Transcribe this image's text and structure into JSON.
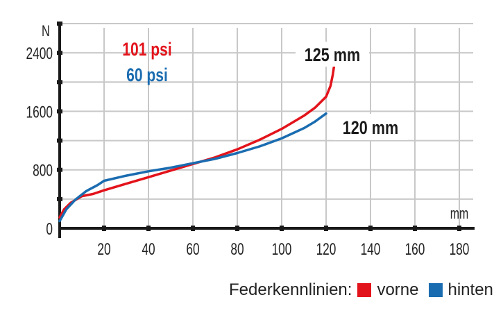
{
  "chart_data": {
    "type": "line",
    "ylabel": "N",
    "xlabel": "mm",
    "xlim": [
      0,
      180
    ],
    "ylim": [
      0,
      2800
    ],
    "x_ticks": [
      "20",
      "40",
      "60",
      "80",
      "100",
      "120",
      "140",
      "160",
      "180"
    ],
    "y_ticks": [
      "0",
      "800",
      "1600",
      "2400"
    ],
    "grid": true,
    "series": [
      {
        "name": "vorne",
        "color": "#e3131b",
        "pressure_label": "101 psi",
        "end_label": "125 mm",
        "points": [
          [
            0,
            150
          ],
          [
            2,
            260
          ],
          [
            5,
            350
          ],
          [
            10,
            440
          ],
          [
            15,
            470
          ],
          [
            20,
            520
          ],
          [
            30,
            610
          ],
          [
            40,
            700
          ],
          [
            50,
            790
          ],
          [
            60,
            880
          ],
          [
            70,
            970
          ],
          [
            80,
            1080
          ],
          [
            90,
            1210
          ],
          [
            100,
            1360
          ],
          [
            110,
            1540
          ],
          [
            115,
            1650
          ],
          [
            120,
            1800
          ],
          [
            122,
            1950
          ],
          [
            123,
            2100
          ],
          [
            124,
            2300
          ],
          [
            125,
            2420
          ]
        ]
      },
      {
        "name": "hinten",
        "color": "#1a6cb0",
        "pressure_label": "60 psi",
        "end_label": "120 mm",
        "points": [
          [
            0,
            100
          ],
          [
            3,
            260
          ],
          [
            7,
            390
          ],
          [
            12,
            510
          ],
          [
            17,
            590
          ],
          [
            20,
            650
          ],
          [
            30,
            720
          ],
          [
            40,
            780
          ],
          [
            50,
            830
          ],
          [
            60,
            890
          ],
          [
            70,
            950
          ],
          [
            80,
            1030
          ],
          [
            90,
            1120
          ],
          [
            100,
            1230
          ],
          [
            110,
            1370
          ],
          [
            115,
            1460
          ],
          [
            120,
            1570
          ]
        ]
      }
    ]
  },
  "legend": {
    "title": "Federkennlinien:",
    "items": [
      {
        "label": "vorne",
        "color": "#e3131b"
      },
      {
        "label": "hinten",
        "color": "#1a6cb0"
      }
    ]
  }
}
